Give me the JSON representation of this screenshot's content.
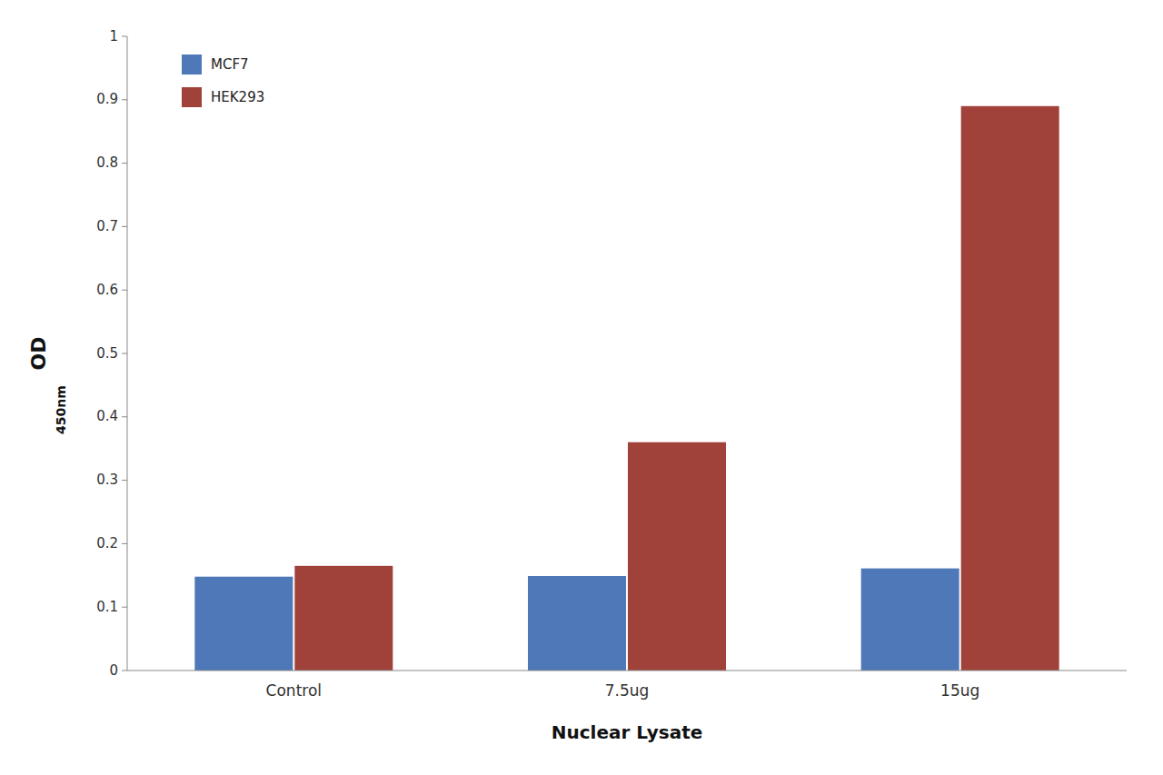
{
  "chart_data": {
    "type": "bar",
    "categories": [
      "Control",
      "7.5ug",
      "15ug"
    ],
    "series": [
      {
        "name": "MCF7",
        "color": "#4E78B8",
        "values": [
          0.148,
          0.149,
          0.161
        ]
      },
      {
        "name": "HEK293",
        "color": "#A0423A",
        "values": [
          0.165,
          0.36,
          0.89
        ]
      }
    ],
    "xlabel": "Nuclear Lysate",
    "ylabel": "OD",
    "annotations": [
      {
        "text": "450nm"
      }
    ],
    "ylim": [
      0,
      1.0
    ],
    "yticks": [
      0,
      0.1,
      0.2,
      0.3,
      0.4,
      0.5,
      0.6,
      0.7,
      0.8,
      0.9,
      1
    ],
    "grid": false,
    "legend": "upper left"
  }
}
